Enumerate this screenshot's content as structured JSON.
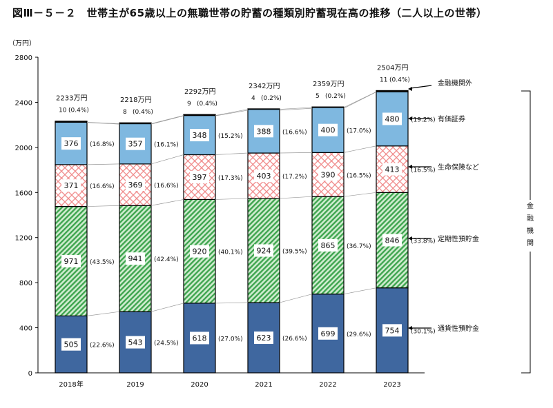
{
  "chart_data": {
    "type": "bar",
    "stacked": true,
    "title": "図Ⅲ－５－２　世帯主が65歳以上の無職世帯の貯蓄の種類別貯蓄現在高の推移（二人以上の世帯）",
    "ylabel": "（万円）",
    "ylim": [
      0,
      2800
    ],
    "yticks": [
      0,
      400,
      800,
      1200,
      1600,
      2000,
      2400,
      2800
    ],
    "categories": [
      "2018年",
      "2019",
      "2020",
      "2021",
      "2022",
      "2023"
    ],
    "totals": [
      "2233万円",
      "2218万円",
      "2292万円",
      "2342万円",
      "2359万円",
      "2504万円"
    ],
    "series": [
      {
        "name": "通貨性預貯金",
        "color": "#3f679f",
        "pattern": "solid",
        "values": [
          505,
          543,
          618,
          623,
          699,
          754
        ],
        "pct": [
          "(22.6%)",
          "(24.5%)",
          "(27.0%)",
          "(26.6%)",
          "(29.6%)",
          "(30.1%)"
        ]
      },
      {
        "name": "定期性預貯金",
        "color": "#3fa54f",
        "pattern": "diagonal",
        "values": [
          971,
          941,
          920,
          924,
          865,
          846
        ],
        "pct": [
          "(43.5%)",
          "(42.4%)",
          "(40.1%)",
          "(39.5%)",
          "(36.7%)",
          "(33.8%)"
        ]
      },
      {
        "name": "生命保険など",
        "color": "#f08a8a",
        "pattern": "crosshatch",
        "values": [
          371,
          369,
          397,
          403,
          390,
          413
        ],
        "pct": [
          "(16.6%)",
          "(16.6%)",
          "(17.3%)",
          "(17.2%)",
          "(16.5%)",
          "(16.5%)"
        ]
      },
      {
        "name": "有価証券",
        "color": "#7fb8e0",
        "pattern": "solid",
        "values": [
          376,
          357,
          348,
          388,
          400,
          480
        ],
        "pct": [
          "(16.8%)",
          "(16.1%)",
          "(15.2%)",
          "(16.6%)",
          "(17.0%)",
          "(19.2%)"
        ]
      },
      {
        "name": "金融機関外",
        "color": "#111111",
        "pattern": "solid",
        "values": [
          10,
          8,
          9,
          4,
          5,
          11
        ],
        "pct": [
          "(0.4%)",
          "(0.4%)",
          "(0.4%)",
          "(0.2%)",
          "(0.2%)",
          "(0.4%)"
        ]
      }
    ],
    "bracket_label": "金融機関",
    "grid": false,
    "legend": "right"
  }
}
